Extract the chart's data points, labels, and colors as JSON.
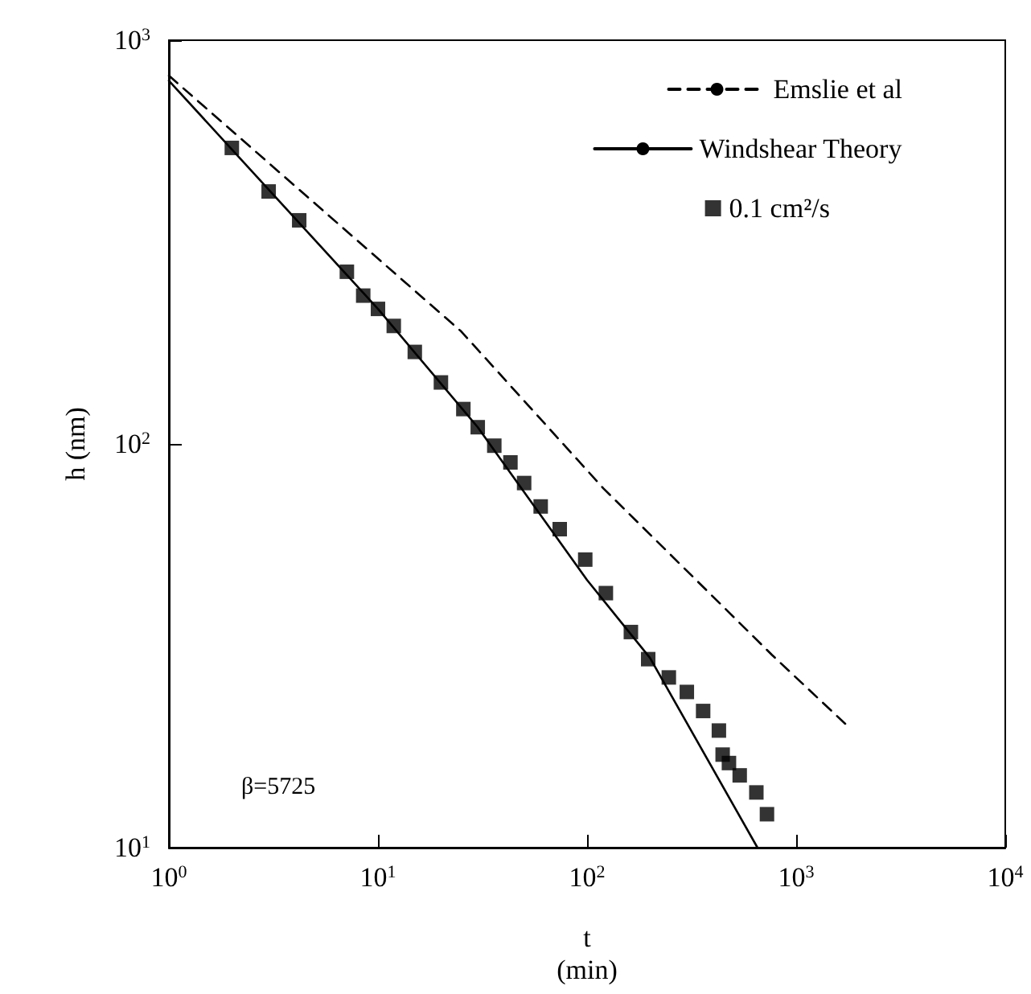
{
  "chart_data": {
    "type": "line",
    "xlabel": "t\n(min)",
    "ylabel": "h (nm)",
    "log": "xy",
    "grid": false,
    "legend": "top right",
    "annotations": [
      "β=5725"
    ],
    "xlim": [
      1,
      10000
    ],
    "ylim": [
      10,
      1000
    ],
    "xticks": [
      {
        "value": 1,
        "label": "10$^{0}$"
      },
      {
        "value": 10,
        "label": "10$^{1}$"
      },
      {
        "value": 100,
        "label": "10$^{2}$"
      },
      {
        "value": 1000,
        "label": "10$^{3}$"
      },
      {
        "value": 10000,
        "label": "10$^{4}$"
      }
    ],
    "yticks": [
      {
        "value": 10,
        "label": "10$^{1}$"
      },
      {
        "value": 100,
        "label": "10$^{2}$"
      },
      {
        "value": 1000,
        "label": "10$^{3}$"
      }
    ],
    "series": [
      {
        "name": "Emslie et al",
        "line_style": "dashed",
        "color": "#000000",
        "x": [
          1,
          25,
          120,
          767,
          1820
        ],
        "values": [
          817,
          190,
          77.5,
          30,
          19.7
        ]
      },
      {
        "name": "Windshear Theory",
        "line_style": "solid",
        "color": "#000000",
        "x": [
          1,
          10,
          30,
          100,
          200,
          653
        ],
        "values": [
          794,
          216,
          110,
          46,
          29.5,
          10
        ]
      },
      {
        "name": "0.1 cm²/s",
        "type": "scatter",
        "marker": "square",
        "color": "#000000",
        "x": [
          2,
          3,
          4.2,
          7.1,
          8.5,
          10,
          11.9,
          15,
          20,
          25.6,
          30,
          36,
          43,
          50,
          60,
          74,
          98,
          123,
          162,
          196,
          246,
          300,
          359,
          427,
          445,
          477,
          537,
          645,
          725
        ],
        "values": [
          541,
          422,
          358,
          267,
          233,
          216,
          196,
          169,
          142,
          122,
          110,
          99,
          90,
          80,
          70,
          61.5,
          51.7,
          42.7,
          34.2,
          29.3,
          26.4,
          24.3,
          21.8,
          19.5,
          17,
          16.2,
          15.1,
          13.7,
          12.1
        ]
      }
    ]
  }
}
